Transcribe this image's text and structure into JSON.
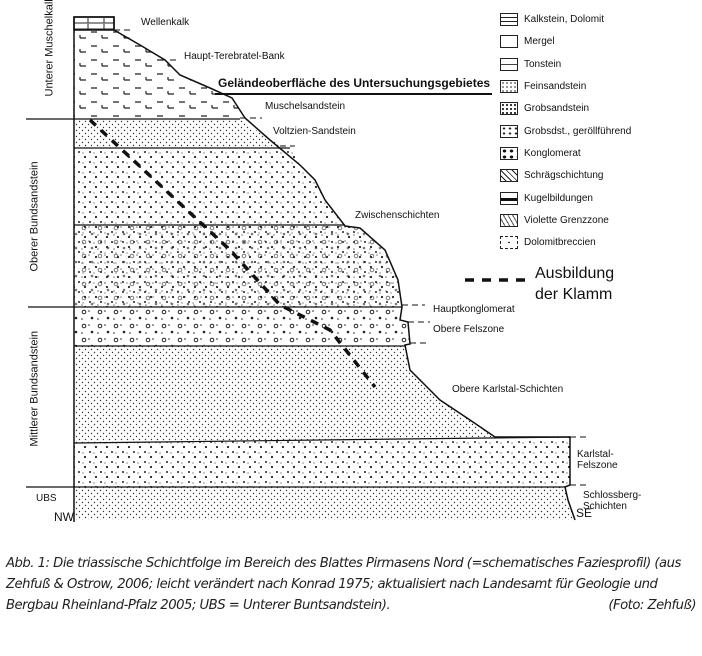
{
  "units": {
    "unterer_muschelkalk": "Unterer Muschelkalk",
    "oberer_bundsandstein": "Oberer Bundsandstein",
    "mittlerer_bundsandstein": "Mittlerer Bundsandstein",
    "ubs": "UBS"
  },
  "orientation": {
    "nw": "NW",
    "se": "SE"
  },
  "layers": {
    "wellenkalk": "Wellenkalk",
    "terebratel": "Haupt-Terebratel-Bank",
    "gelaende": "Geländeoberfläche des Untersuchungsgebietes",
    "muschelsandstein": "Muschelsandstein",
    "voltzien": "Voltzien-Sandstein",
    "zwischen": "Zwischenschichten",
    "hauptkonglomerat": "Hauptkonglomerat",
    "obere_felszone": "Obere Felszone",
    "obere_karlstal": "Obere Karlstal-Schichten",
    "karlstal_felszone_1": "Karlstal-",
    "karlstal_felszone_2": "Felszone",
    "schlossberg_1": "Schlossberg-",
    "schlossberg_2": "Schichten"
  },
  "legend": [
    "Kalkstein, Dolomit",
    "Mergel",
    "Tonstein",
    "Feinsandstein",
    "Grobsandstein",
    "Grobsdst., geröllführend",
    "Konglomerat",
    "Schrägschichtung",
    "Kugelbildungen",
    "Violette Grenzzone",
    "Dolomitbreccien"
  ],
  "klamm": {
    "line1": "Ausbildung",
    "line2": "der Klamm"
  },
  "caption": {
    "text": "Abb. 1: Die triassische Schichtfolge im Bereich des Blattes Pirmasens Nord (=schematisches Faziesprofil) (aus Zehfuß & Ostrow, 2006; leicht verändert nach Konrad 1975; aktualisiert nach Landesamt für Geologie und Bergbau Rheinland-Pfalz 2005; UBS = Unterer Buntsandstein).",
    "credit": "(Foto: Zehfuß)"
  }
}
